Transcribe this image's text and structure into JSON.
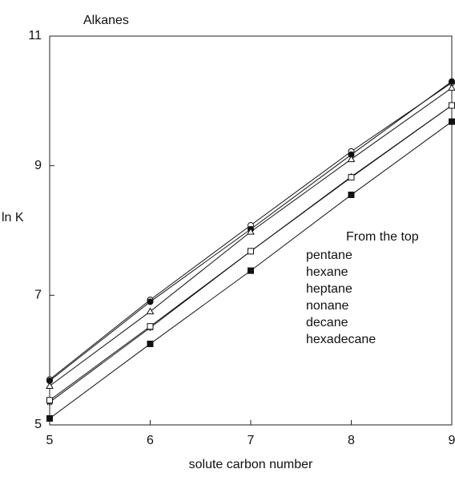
{
  "chart_data": {
    "type": "line",
    "title": "Alkanes",
    "xlabel": "solute carbon number",
    "ylabel": "ln K",
    "annotation": "From the top",
    "x": [
      5,
      6,
      7,
      8,
      9
    ],
    "xlim": [
      5,
      9
    ],
    "xticks": [
      5,
      6,
      7,
      8,
      9
    ],
    "ylim": [
      5,
      11
    ],
    "yticks": [
      5,
      7,
      9,
      11
    ],
    "series": [
      {
        "name": "pentane",
        "color": "#111111",
        "marker": "open-circle",
        "values": [
          5.7,
          6.93,
          8.08,
          9.22,
          10.28
        ]
      },
      {
        "name": "hexane",
        "color": "#111111",
        "marker": "filled-circle",
        "values": [
          5.68,
          6.9,
          8.02,
          9.17,
          10.3
        ]
      },
      {
        "name": "heptane",
        "color": "#111111",
        "marker": "open-triangle",
        "values": [
          5.6,
          6.75,
          7.98,
          9.1,
          10.2
        ]
      },
      {
        "name": "nonane",
        "color": "#111111",
        "marker": "star",
        "values": [
          5.35,
          6.5,
          7.68,
          8.83,
          9.93
        ]
      },
      {
        "name": "decane",
        "color": "#111111",
        "marker": "open-square",
        "values": [
          5.38,
          6.52,
          7.68,
          8.82,
          9.93
        ]
      },
      {
        "name": "hexadecane",
        "color": "#111111",
        "marker": "filled-square",
        "values": [
          5.1,
          6.25,
          7.38,
          8.55,
          9.68
        ]
      }
    ]
  }
}
